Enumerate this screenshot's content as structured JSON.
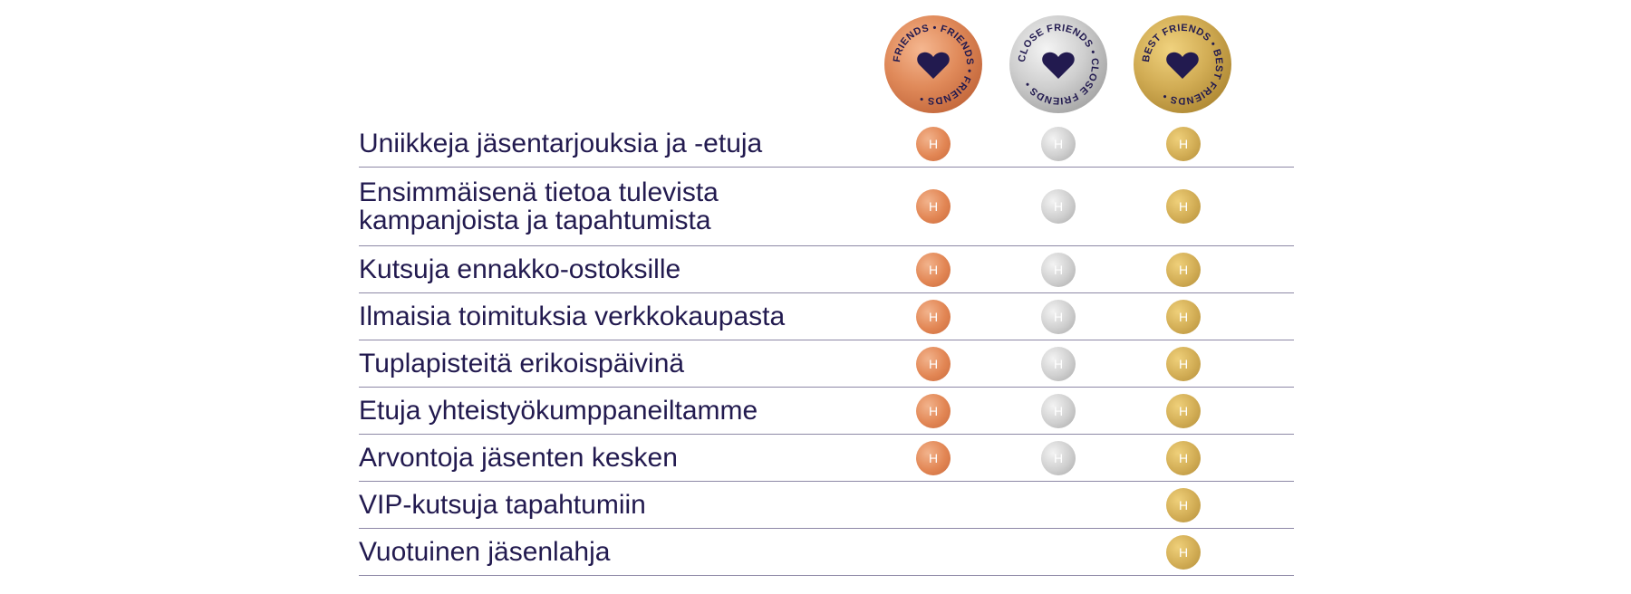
{
  "badges": [
    {
      "text": "FRIENDS • FRIENDS • FRIENDS •",
      "tier": "bronze",
      "colors": [
        "#f5b790",
        "#e08a5a",
        "#c4683c"
      ]
    },
    {
      "text": "CLOSE FRIENDS • CLOSE FRIENDS •",
      "tier": "silver",
      "colors": [
        "#f4f4f4",
        "#cfcfcf",
        "#a6a6a6"
      ]
    },
    {
      "text": "BEST FRIENDS • BEST FRIENDS •",
      "tier": "gold",
      "colors": [
        "#f0d27e",
        "#d2ad55",
        "#b08a35"
      ]
    }
  ],
  "icon_color": "#221a4f",
  "mark_letter": "H",
  "rows": [
    {
      "label": "Uniikkeja jäsentarjouksia ja -etuja",
      "tiers": [
        true,
        true,
        true
      ]
    },
    {
      "label": "Ensimmäisenä tietoa tulevista\nkampanjoista ja tapahtumista",
      "tiers": [
        true,
        true,
        true
      ]
    },
    {
      "label": "Kutsuja ennakko-ostoksille",
      "tiers": [
        true,
        true,
        true
      ]
    },
    {
      "label": "Ilmaisia toimituksia verkkokaupasta",
      "tiers": [
        true,
        true,
        true
      ]
    },
    {
      "label": "Tuplapisteitä erikoispäivinä",
      "tiers": [
        true,
        true,
        true
      ]
    },
    {
      "label": "Etuja yhteistyökumppaneiltamme",
      "tiers": [
        true,
        true,
        true
      ]
    },
    {
      "label": "Arvontoja jäsenten kesken",
      "tiers": [
        true,
        true,
        true
      ]
    },
    {
      "label": "VIP-kutsuja tapahtumiin",
      "tiers": [
        false,
        false,
        true
      ]
    },
    {
      "label": "Vuotuinen jäsenlahja",
      "tiers": [
        false,
        false,
        true
      ]
    }
  ]
}
